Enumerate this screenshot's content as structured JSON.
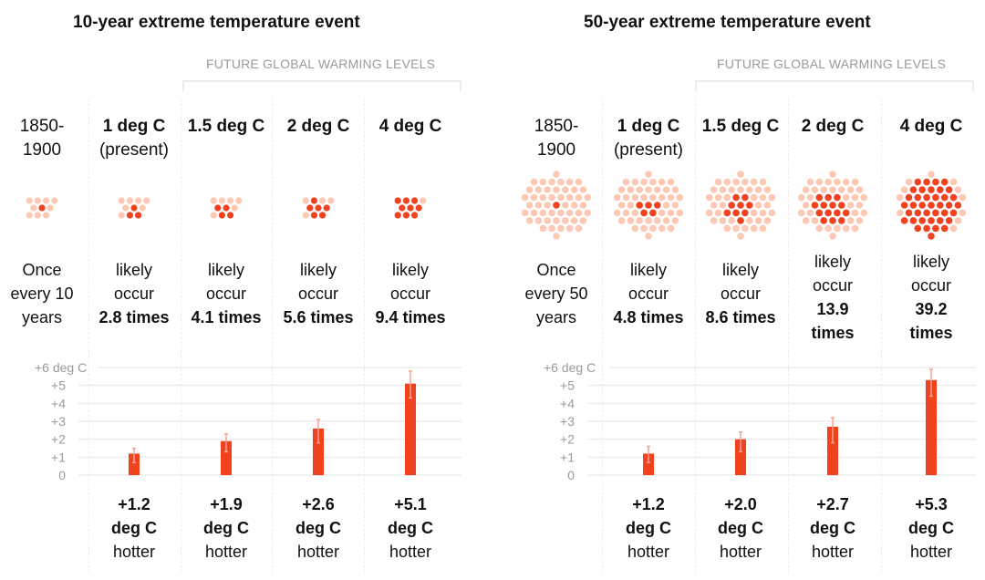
{
  "colors": {
    "bar": "#f0421f",
    "error_bar": "#f8a48f",
    "dot_dark": "#f0421f",
    "dot_light": "#fdc8b4",
    "grid": "#ececec",
    "axis_text": "#9a9a9a"
  },
  "panels": [
    {
      "title": "10-year extreme temperature event",
      "future_label": "FUTURE GLOBAL WARMING LEVELS",
      "total_dots": 10,
      "columns": [
        {
          "head_bold": "",
          "head_normal": "1850-\n1900",
          "freq_lines": [
            "Once",
            "every 10",
            "years"
          ],
          "freq_bold": "",
          "dark_dots": 1
        },
        {
          "head_bold": "1 deg C",
          "head_normal": "(present)",
          "freq_lines": [
            "likely",
            "occur"
          ],
          "freq_bold": "2.8 times",
          "dark_dots": 3
        },
        {
          "head_bold": "1.5 deg C",
          "head_normal": "",
          "freq_lines": [
            "likely",
            "occur"
          ],
          "freq_bold": "4.1 times",
          "dark_dots": 4
        },
        {
          "head_bold": "2 deg C",
          "head_normal": "",
          "freq_lines": [
            "likely",
            "occur"
          ],
          "freq_bold": "5.6 times",
          "dark_dots": 6
        },
        {
          "head_bold": "4 deg C",
          "head_normal": "",
          "freq_lines": [
            "likely",
            "occur"
          ],
          "freq_bold": "9.4 times",
          "dark_dots": 9
        }
      ],
      "hotter": [
        {
          "value": "+1.2",
          "unit": "deg C",
          "word": "hotter"
        },
        {
          "value": "+1.9",
          "unit": "deg C",
          "word": "hotter"
        },
        {
          "value": "+2.6",
          "unit": "deg C",
          "word": "hotter"
        },
        {
          "value": "+5.1",
          "unit": "deg C",
          "word": "hotter"
        }
      ]
    },
    {
      "title": "50-year extreme temperature event",
      "future_label": "FUTURE GLOBAL WARMING LEVELS",
      "total_dots": 50,
      "columns": [
        {
          "head_bold": "",
          "head_normal": "1850-\n1900",
          "freq_lines": [
            "Once",
            "every 50",
            "years"
          ],
          "freq_bold": "",
          "dark_dots": 1
        },
        {
          "head_bold": "1 deg C",
          "head_normal": "(present)",
          "freq_lines": [
            "likely",
            "occur"
          ],
          "freq_bold": "4.8 times",
          "dark_dots": 5
        },
        {
          "head_bold": "1.5 deg C",
          "head_normal": "",
          "freq_lines": [
            "likely",
            "occur"
          ],
          "freq_bold": "8.6 times",
          "dark_dots": 9
        },
        {
          "head_bold": "2 deg C",
          "head_normal": "",
          "freq_lines": [
            "likely",
            "occur",
            "13.9"
          ],
          "freq_bold": "times",
          "dark_dots": 14
        },
        {
          "head_bold": "4 deg C",
          "head_normal": "",
          "freq_lines": [
            "likely",
            "occur",
            "39.2"
          ],
          "freq_bold": "times",
          "dark_dots": 39
        }
      ],
      "hotter": [
        {
          "value": "+1.2",
          "unit": "deg C",
          "word": "hotter"
        },
        {
          "value": "+2.0",
          "unit": "deg C",
          "word": "hotter"
        },
        {
          "value": "+2.7",
          "unit": "deg C",
          "word": "hotter"
        },
        {
          "value": "+5.3",
          "unit": "deg C",
          "word": "hotter"
        }
      ]
    }
  ],
  "chart_data": [
    {
      "type": "bar",
      "title": "10-year extreme temperature event",
      "categories": [
        "1 deg C",
        "1.5 deg C",
        "2 deg C",
        "4 deg C"
      ],
      "values": [
        1.2,
        1.9,
        2.6,
        5.1
      ],
      "error_low": [
        0.7,
        1.3,
        1.8,
        4.3
      ],
      "error_high": [
        1.5,
        2.3,
        3.1,
        5.8
      ],
      "ylabel": "deg C",
      "yticks": [
        "0",
        "+1",
        "+2",
        "+3",
        "+4",
        "+5",
        "+6 deg C"
      ],
      "ylim": [
        0,
        6
      ],
      "grid": true,
      "frequency_multipliers": [
        2.8,
        4.1,
        5.6,
        9.4
      ]
    },
    {
      "type": "bar",
      "title": "50-year extreme temperature event",
      "categories": [
        "1 deg C",
        "1.5 deg C",
        "2 deg C",
        "4 deg C"
      ],
      "values": [
        1.2,
        2.0,
        2.7,
        5.3
      ],
      "error_low": [
        0.7,
        1.3,
        1.8,
        4.4
      ],
      "error_high": [
        1.6,
        2.4,
        3.2,
        5.9
      ],
      "ylabel": "deg C",
      "yticks": [
        "0",
        "+1",
        "+2",
        "+3",
        "+4",
        "+5",
        "+6 deg C"
      ],
      "ylim": [
        0,
        6
      ],
      "grid": true,
      "frequency_multipliers": [
        4.8,
        8.6,
        13.9,
        39.2
      ]
    }
  ]
}
